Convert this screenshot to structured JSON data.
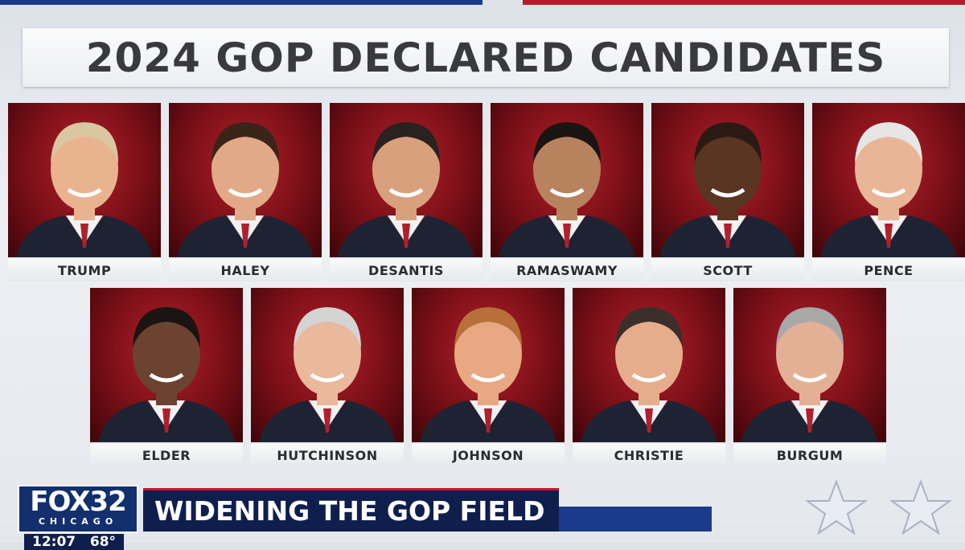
{
  "header": {
    "title": "2024 GOP DECLARED CANDIDATES"
  },
  "candidates": {
    "row1": [
      "TRUMP",
      "HALEY",
      "DESANTIS",
      "RAMASWAMY",
      "SCOTT",
      "PENCE"
    ],
    "row2": [
      "ELDER",
      "HUTCHINSON",
      "JOHNSON",
      "CHRISTIE",
      "BURGUM"
    ]
  },
  "lower_third": {
    "logo": "FOX",
    "channel": "32",
    "city": "CHICAGO",
    "headline": "WIDENING THE GOP FIELD",
    "clock": "12:07",
    "temperature": "68°"
  }
}
